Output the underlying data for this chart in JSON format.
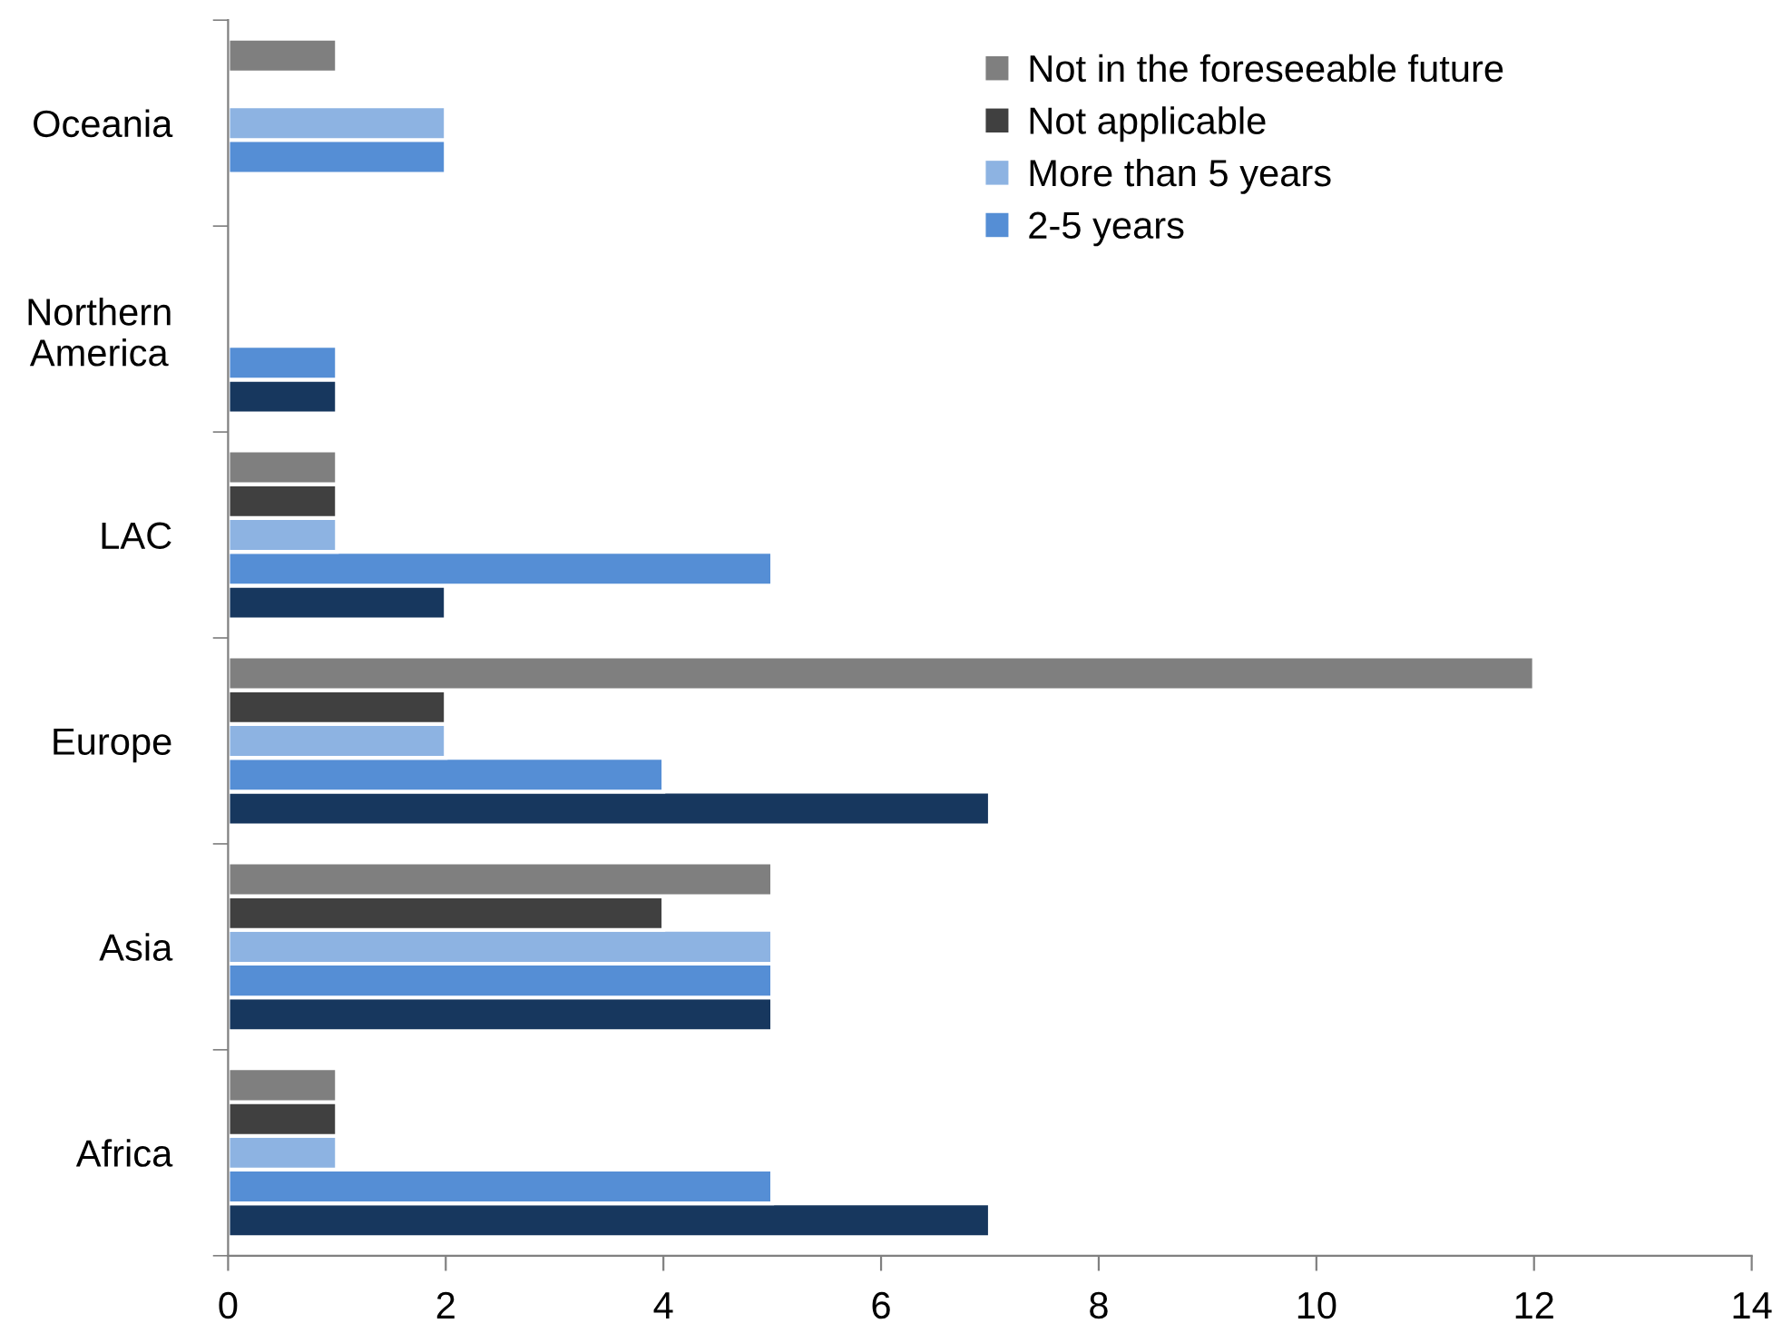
{
  "chart_data": {
    "type": "bar",
    "orientation": "horizontal",
    "categories": [
      "Oceania",
      "Northern\nAmerica",
      "LAC",
      "Europe",
      "Asia",
      "Africa"
    ],
    "series": [
      {
        "color": "#17375e",
        "values": [
          null,
          1,
          2,
          7,
          5,
          7
        ]
      },
      {
        "name": "2-5 years",
        "color": "#558ed5",
        "values": [
          2,
          1,
          5,
          4,
          5,
          5
        ]
      },
      {
        "name": "More than 5 years",
        "color": "#8db3e2",
        "values": [
          2,
          null,
          1,
          2,
          5,
          1
        ]
      },
      {
        "name": "Not applicable",
        "color": "#404040",
        "values": [
          null,
          null,
          1,
          2,
          4,
          1
        ]
      },
      {
        "name": "Not in the foreseeable future",
        "color": "#7f7f7f",
        "values": [
          1,
          null,
          1,
          12,
          5,
          1
        ]
      }
    ],
    "xlim": [
      0,
      14
    ],
    "xticks": [
      0,
      2,
      4,
      6,
      8,
      10,
      12,
      14
    ],
    "grid": false,
    "legend": "top right"
  }
}
